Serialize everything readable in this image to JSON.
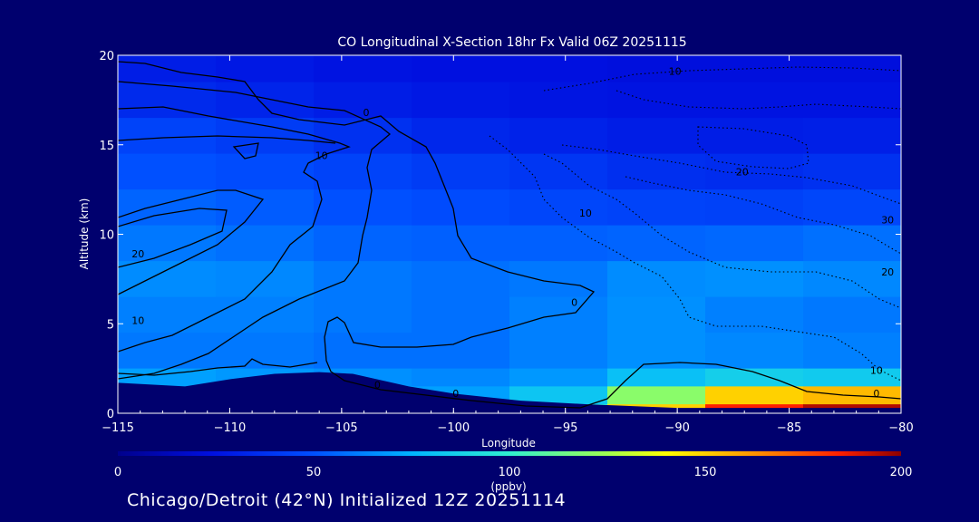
{
  "chart_data": {
    "type": "heatmap",
    "title": "CO Longitudinal X-Section 18hr  Fx Valid 06Z 20251115",
    "xlabel": "Longitude",
    "ylabel": "Altitude (km)",
    "xlim": [
      -115,
      -80
    ],
    "ylim": [
      0,
      20
    ],
    "x_ticks": [
      -115,
      -110,
      -105,
      -100,
      -95,
      -90,
      -85,
      -80
    ],
    "x_tick_labels": [
      "−115",
      "−110",
      "−105",
      "−100",
      "−95",
      "−90",
      "−85",
      "−80"
    ],
    "y_ticks": [
      0,
      5,
      10,
      15,
      20
    ],
    "y_tick_labels": [
      "0",
      "5",
      "10",
      "15",
      "20"
    ],
    "colorbar": {
      "min": 0,
      "max": 200,
      "ticks": [
        0,
        50,
        100,
        150,
        200
      ],
      "tick_labels": [
        "0",
        "50",
        "100",
        "150",
        "200"
      ],
      "units": "(ppbv)"
    },
    "shading_rows": [
      {
        "z": [
          18.5,
          20
        ],
        "co": [
          30,
          28,
          26,
          25,
          25,
          24,
          24,
          24
        ]
      },
      {
        "z": [
          16.5,
          18.5
        ],
        "co": [
          35,
          33,
          30,
          28,
          27,
          26,
          26,
          26
        ]
      },
      {
        "z": [
          14.5,
          16.5
        ],
        "co": [
          45,
          42,
          38,
          34,
          32,
          30,
          30,
          31
        ]
      },
      {
        "z": [
          12.5,
          14.5
        ],
        "co": [
          50,
          48,
          45,
          42,
          40,
          37,
          36,
          38
        ]
      },
      {
        "z": [
          10.5,
          12.5
        ],
        "co": [
          55,
          53,
          50,
          48,
          46,
          45,
          44,
          46
        ]
      },
      {
        "z": [
          8.5,
          10.5
        ],
        "co": [
          60,
          58,
          55,
          54,
          54,
          55,
          56,
          58
        ]
      },
      {
        "z": [
          6.5,
          8.5
        ],
        "co": [
          65,
          64,
          60,
          58,
          60,
          65,
          66,
          64
        ]
      },
      {
        "z": [
          4.5,
          6.5
        ],
        "co": [
          62,
          62,
          60,
          58,
          62,
          66,
          62,
          60
        ]
      },
      {
        "z": [
          2.5,
          4.5
        ],
        "co": [
          60,
          60,
          58,
          58,
          62,
          66,
          64,
          62
        ]
      },
      {
        "z": [
          1.5,
          2.5
        ],
        "co": [
          70,
          68,
          66,
          64,
          68,
          80,
          86,
          84
        ]
      },
      {
        "z": [
          0.5,
          1.5
        ],
        "co": [
          72,
          72,
          74,
          70,
          82,
          120,
          150,
          155
        ]
      },
      {
        "z": [
          0,
          0.5
        ],
        "co": [
          75,
          75,
          76,
          74,
          100,
          150,
          185,
          195
        ]
      }
    ],
    "terrain": [
      [
        -115,
        1.7
      ],
      [
        -112,
        1.5
      ],
      [
        -110,
        1.9
      ],
      [
        -108,
        2.2
      ],
      [
        -106,
        2.3
      ],
      [
        -104.5,
        2.2
      ],
      [
        -102,
        1.5
      ],
      [
        -100,
        1.1
      ],
      [
        -97,
        0.7
      ],
      [
        -94,
        0.5
      ],
      [
        -90,
        0.3
      ],
      [
        -85,
        0.3
      ],
      [
        -80,
        0.3
      ]
    ],
    "contour_labels": [
      {
        "text": "10",
        "x": -90.1,
        "y": 18.9
      },
      {
        "text": "0",
        "x": -103.9,
        "y": 16.6
      },
      {
        "text": "10",
        "x": -105.9,
        "y": 14.2
      },
      {
        "text": "20",
        "x": -87.1,
        "y": 13.3
      },
      {
        "text": "10",
        "x": -94.1,
        "y": 11.0
      },
      {
        "text": "30",
        "x": -80.6,
        "y": 10.6
      },
      {
        "text": "20",
        "x": -114.1,
        "y": 8.7
      },
      {
        "text": "20",
        "x": -80.6,
        "y": 7.7
      },
      {
        "text": "0",
        "x": -94.6,
        "y": 6.0
      },
      {
        "text": "10",
        "x": -114.1,
        "y": 5.0
      },
      {
        "text": "10",
        "x": -81.1,
        "y": 2.2
      },
      {
        "text": "0",
        "x": -103.4,
        "y": 1.4
      },
      {
        "text": "0",
        "x": -99.9,
        "y": 0.9
      },
      {
        "text": "0",
        "x": -81.1,
        "y": 0.9
      }
    ]
  },
  "footer": "Chicago/Detroit (42°N) Initialized 12Z 20251114",
  "colors": {
    "background": "#00006e",
    "axis": "#ffffff",
    "contour": "#000000"
  }
}
